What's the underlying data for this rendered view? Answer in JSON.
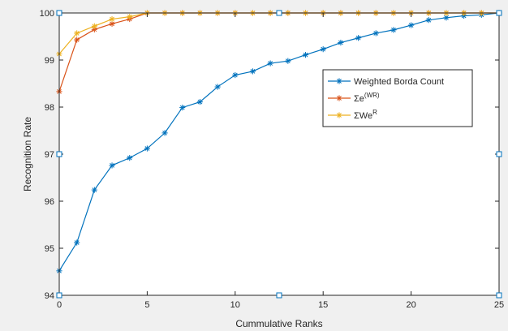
{
  "chart_data": {
    "type": "line",
    "title": "",
    "xlabel": "Cummulative Ranks",
    "ylabel": "Recognition Rate",
    "xlim": [
      0,
      25
    ],
    "ylim": [
      94,
      100
    ],
    "xticks": [
      "0",
      "5",
      "10",
      "15",
      "20",
      "25"
    ],
    "yticks": [
      "94",
      "95",
      "96",
      "97",
      "98",
      "99",
      "100"
    ],
    "grid": false,
    "legend_position": "center-right",
    "marker": "asterisk",
    "series": [
      {
        "name": "Weighted Borda Count",
        "legend_main": "Weighted Borda Count",
        "legend_sup": "",
        "color": "#0072bd",
        "x": [
          0,
          1,
          2,
          3,
          4,
          5,
          6,
          7,
          8,
          9,
          10,
          11,
          12,
          13,
          14,
          15,
          16,
          17,
          18,
          19,
          20,
          21,
          22,
          23,
          24,
          25
        ],
        "values": [
          94.52,
          95.12,
          96.24,
          96.76,
          96.92,
          97.12,
          97.45,
          97.99,
          98.11,
          98.43,
          98.68,
          98.76,
          98.93,
          98.98,
          99.11,
          99.23,
          99.37,
          99.47,
          99.57,
          99.64,
          99.74,
          99.85,
          99.9,
          99.94,
          99.96,
          100.0
        ]
      },
      {
        "name": "Σe(WR)",
        "legend_main": "Σe",
        "legend_sup": "(WR)",
        "color": "#d95319",
        "x": [
          0,
          1,
          2,
          3,
          4,
          5,
          6,
          7,
          8,
          9,
          10,
          11,
          12,
          13,
          14,
          15,
          16,
          17,
          18,
          19,
          20,
          21,
          22,
          23,
          24,
          25
        ],
        "values": [
          98.33,
          99.43,
          99.65,
          99.77,
          99.87,
          100.0,
          100.0,
          100.0,
          100.0,
          100.0,
          100.0,
          100.0,
          100.0,
          100.0,
          100.0,
          100.0,
          100.0,
          100.0,
          100.0,
          100.0,
          100.0,
          100.0,
          100.0,
          100.0,
          100.0,
          100.0
        ]
      },
      {
        "name": "ΣWeR",
        "legend_main": "ΣWe",
        "legend_sup": "R",
        "color": "#edb120",
        "x": [
          0,
          1,
          2,
          3,
          4,
          5,
          6,
          7,
          8,
          9,
          10,
          11,
          12,
          13,
          14,
          15,
          16,
          17,
          18,
          19,
          20,
          21,
          22,
          23,
          24,
          25
        ],
        "values": [
          99.13,
          99.57,
          99.72,
          99.87,
          99.92,
          100.0,
          100.0,
          100.0,
          100.0,
          100.0,
          100.0,
          100.0,
          100.0,
          100.0,
          100.0,
          100.0,
          100.0,
          100.0,
          100.0,
          100.0,
          100.0,
          100.0,
          100.0,
          100.0,
          100.0,
          100.0
        ]
      }
    ],
    "data_tip_anchors": [
      {
        "x": 0,
        "y": 100
      },
      {
        "x": 12.5,
        "y": 100
      },
      {
        "x": 25,
        "y": 100
      },
      {
        "x": 0,
        "y": 97
      },
      {
        "x": 25,
        "y": 97
      },
      {
        "x": 0,
        "y": 94
      },
      {
        "x": 12.5,
        "y": 94
      },
      {
        "x": 25,
        "y": 94
      }
    ]
  }
}
